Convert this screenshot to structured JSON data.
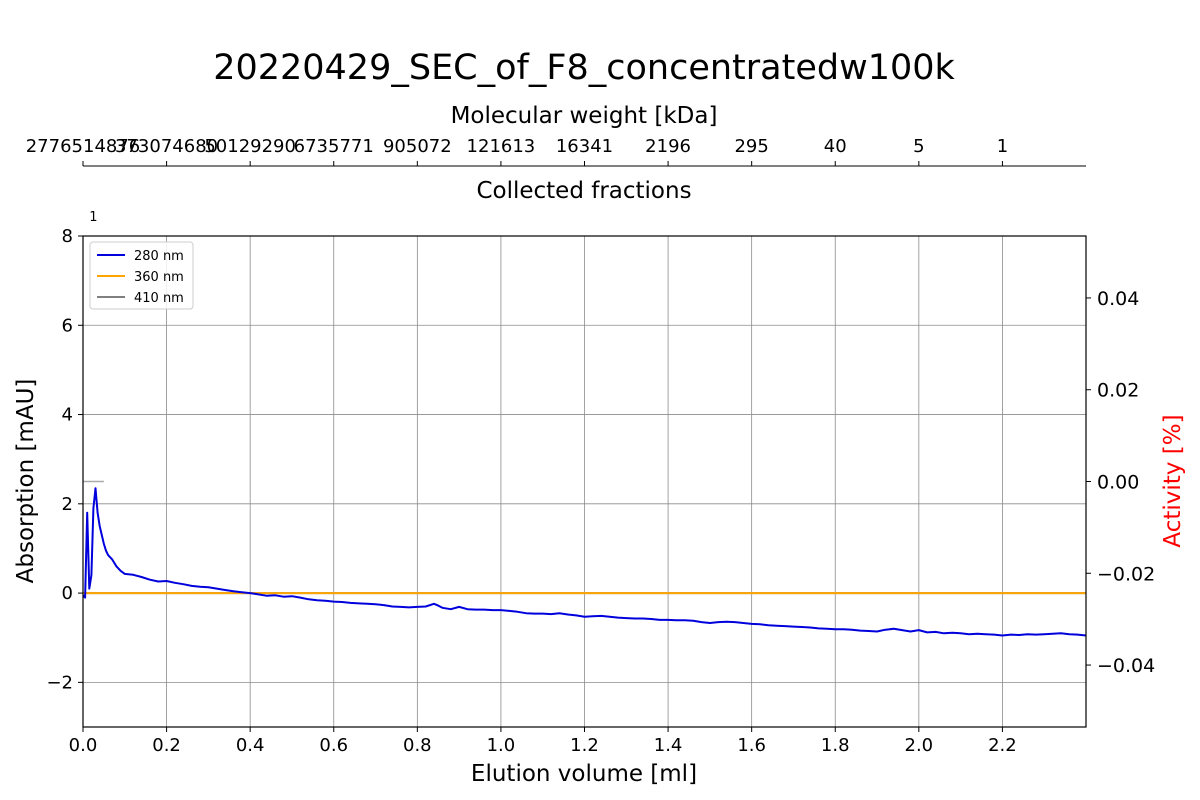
{
  "chart_data": {
    "type": "line",
    "title": "20220429_SEC_of_F8_concentratedw100k",
    "xlabel": "Elution volume [ml]",
    "ylabel": "Absorption [mAU]",
    "y2label": "Activity [%]",
    "top_axis_label": "Molecular weight [kDa]",
    "fractions_label": "Collected fractions",
    "xlim": [
      0,
      2.4
    ],
    "ylim": [
      -3,
      8
    ],
    "y2lim": [
      -0.0535,
      0.0535
    ],
    "grid": true,
    "legend_position": "top-left",
    "x_ticks": [
      "0.0",
      "0.2",
      "0.4",
      "0.6",
      "0.8",
      "1.0",
      "1.2",
      "1.4",
      "1.6",
      "1.8",
      "2.0",
      "2.2"
    ],
    "y_ticks": [
      "−2",
      "0",
      "2",
      "4",
      "6",
      "8"
    ],
    "y2_ticks": [
      "−0.04",
      "−0.02",
      "0.00",
      "0.02",
      "0.04"
    ],
    "mw_ticks": [
      {
        "x": 0.0,
        "label": "2776514876"
      },
      {
        "x": 0.2,
        "label": "373074680"
      },
      {
        "x": 0.4,
        "label": "50129290"
      },
      {
        "x": 0.6,
        "label": "6735771"
      },
      {
        "x": 0.8,
        "label": "905072"
      },
      {
        "x": 1.0,
        "label": "121613"
      },
      {
        "x": 1.2,
        "label": "16341"
      },
      {
        "x": 1.4,
        "label": "2196"
      },
      {
        "x": 1.6,
        "label": "295"
      },
      {
        "x": 1.8,
        "label": "40"
      },
      {
        "x": 2.0,
        "label": "5"
      },
      {
        "x": 2.2,
        "label": "1"
      }
    ],
    "fractions": [
      {
        "label": "1",
        "start": 0.0,
        "end": 0.05
      }
    ],
    "fraction_marker_y": 2.5,
    "series": [
      {
        "name": "280 nm",
        "color": "#0000dd",
        "x": [
          0.0,
          0.005,
          0.01,
          0.015,
          0.02,
          0.025,
          0.03,
          0.035,
          0.04,
          0.045,
          0.05,
          0.055,
          0.06,
          0.07,
          0.08,
          0.09,
          0.1,
          0.12,
          0.14,
          0.16,
          0.18,
          0.2,
          0.22,
          0.24,
          0.26,
          0.28,
          0.3,
          0.32,
          0.34,
          0.36,
          0.38,
          0.4,
          0.42,
          0.44,
          0.46,
          0.48,
          0.5,
          0.52,
          0.54,
          0.56,
          0.58,
          0.6,
          0.62,
          0.64,
          0.66,
          0.68,
          0.7,
          0.72,
          0.74,
          0.76,
          0.78,
          0.8,
          0.82,
          0.84,
          0.85,
          0.86,
          0.88,
          0.9,
          0.92,
          0.94,
          0.96,
          0.98,
          1.0,
          1.02,
          1.04,
          1.06,
          1.08,
          1.1,
          1.12,
          1.14,
          1.16,
          1.18,
          1.2,
          1.22,
          1.24,
          1.26,
          1.28,
          1.3,
          1.32,
          1.34,
          1.36,
          1.38,
          1.4,
          1.42,
          1.44,
          1.46,
          1.48,
          1.5,
          1.52,
          1.54,
          1.56,
          1.58,
          1.6,
          1.62,
          1.64,
          1.66,
          1.68,
          1.7,
          1.72,
          1.74,
          1.76,
          1.78,
          1.8,
          1.82,
          1.84,
          1.86,
          1.88,
          1.9,
          1.92,
          1.94,
          1.96,
          1.98,
          2.0,
          2.02,
          2.04,
          2.06,
          2.08,
          2.1,
          2.12,
          2.14,
          2.16,
          2.18,
          2.2,
          2.22,
          2.24,
          2.26,
          2.28,
          2.3,
          2.32,
          2.34,
          2.36,
          2.38,
          2.4
        ],
        "values": [
          -0.05,
          -0.1,
          1.8,
          0.1,
          0.4,
          1.9,
          2.35,
          1.8,
          1.5,
          1.3,
          1.1,
          0.95,
          0.85,
          0.75,
          0.6,
          0.5,
          0.43,
          0.41,
          0.36,
          0.3,
          0.26,
          0.27,
          0.23,
          0.2,
          0.16,
          0.14,
          0.13,
          0.1,
          0.07,
          0.04,
          0.02,
          0.0,
          -0.03,
          -0.06,
          -0.05,
          -0.08,
          -0.07,
          -0.1,
          -0.14,
          -0.16,
          -0.17,
          -0.19,
          -0.2,
          -0.22,
          -0.23,
          -0.24,
          -0.25,
          -0.27,
          -0.3,
          -0.31,
          -0.32,
          -0.31,
          -0.3,
          -0.24,
          -0.28,
          -0.33,
          -0.36,
          -0.31,
          -0.36,
          -0.37,
          -0.37,
          -0.38,
          -0.38,
          -0.4,
          -0.42,
          -0.45,
          -0.46,
          -0.46,
          -0.47,
          -0.45,
          -0.48,
          -0.5,
          -0.53,
          -0.52,
          -0.51,
          -0.53,
          -0.55,
          -0.56,
          -0.57,
          -0.57,
          -0.58,
          -0.6,
          -0.6,
          -0.61,
          -0.61,
          -0.62,
          -0.65,
          -0.67,
          -0.65,
          -0.64,
          -0.65,
          -0.67,
          -0.69,
          -0.7,
          -0.72,
          -0.73,
          -0.74,
          -0.75,
          -0.76,
          -0.77,
          -0.79,
          -0.8,
          -0.81,
          -0.81,
          -0.82,
          -0.84,
          -0.85,
          -0.86,
          -0.82,
          -0.8,
          -0.83,
          -0.86,
          -0.83,
          -0.88,
          -0.87,
          -0.9,
          -0.89,
          -0.9,
          -0.92,
          -0.91,
          -0.92,
          -0.93,
          -0.95,
          -0.93,
          -0.94,
          -0.92,
          -0.93,
          -0.92,
          -0.91,
          -0.9,
          -0.92,
          -0.93,
          -0.95
        ]
      },
      {
        "name": "360 nm",
        "color": "#ffa500",
        "x": [
          0.0,
          2.4
        ],
        "values": [
          0.0,
          0.0
        ]
      },
      {
        "name": "410 nm",
        "color": "#808080",
        "x": [
          0.0,
          2.4
        ],
        "values": [
          0.0,
          0.0
        ]
      }
    ]
  }
}
